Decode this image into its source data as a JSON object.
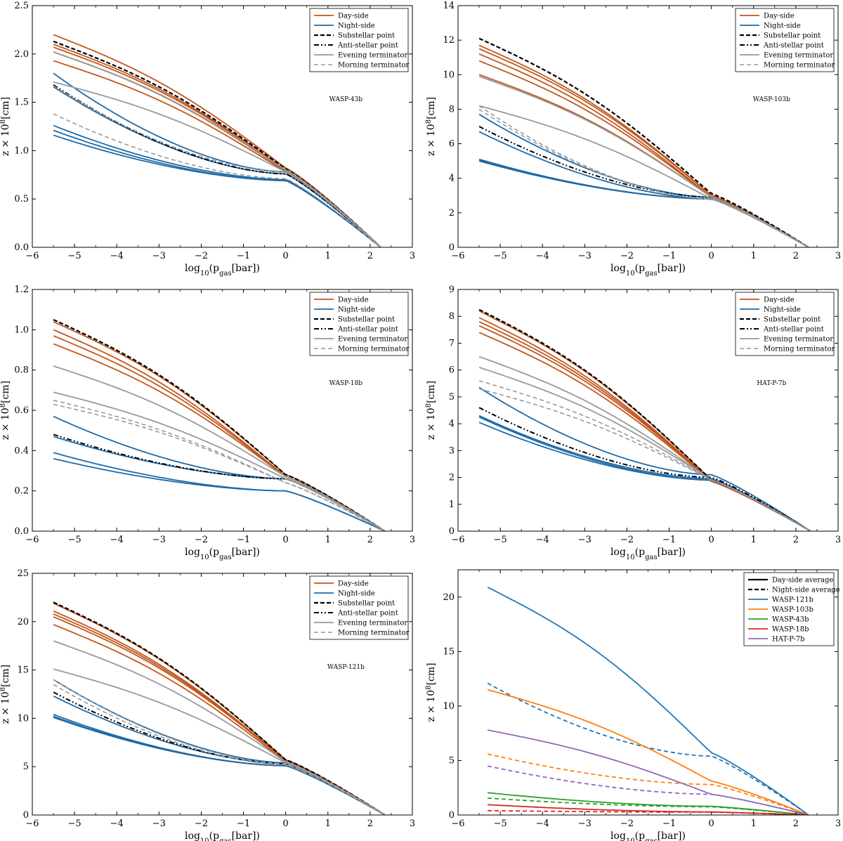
{
  "chart_data": [
    {
      "type": "line",
      "title": "WASP-43b",
      "xlabel": "log10(pgas[bar])",
      "ylabel": "z × 10^8[cm]",
      "xlim": [
        -6,
        3
      ],
      "ylim": [
        0,
        2.5
      ],
      "xticks": [
        -6,
        -5,
        -4,
        -3,
        -2,
        -1,
        0,
        1,
        2,
        3
      ],
      "yticks": [
        0.0,
        0.5,
        1.0,
        1.5,
        2.0,
        2.5
      ],
      "ytick_labels": [
        "0.0",
        "0.5",
        "1.0",
        "1.5",
        "2.0",
        "2.5"
      ],
      "legend": [
        "Day-side",
        "Night-side",
        "Substellar point",
        "Anti-stellar point",
        "Evening terminator",
        "Morning terminator"
      ],
      "x_end": 2.25,
      "series": [
        {
          "name": "Day-side",
          "start": 2.2,
          "mid": 0.82,
          "shape": "day"
        },
        {
          "name": "Day-side",
          "start": 2.1,
          "mid": 0.8,
          "shape": "day"
        },
        {
          "name": "Day-side",
          "start": 2.07,
          "mid": 0.8,
          "shape": "day"
        },
        {
          "name": "Day-side",
          "start": 2.02,
          "mid": 0.79,
          "shape": "day"
        },
        {
          "name": "Day-side",
          "start": 1.93,
          "mid": 0.78,
          "shape": "day"
        },
        {
          "name": "Night-side",
          "start": 1.8,
          "mid": 0.78,
          "shape": "night"
        },
        {
          "name": "Night-side",
          "start": 1.66,
          "mid": 0.76,
          "shape": "night"
        },
        {
          "name": "Night-side",
          "start": 1.26,
          "mid": 0.7,
          "shape": "night"
        },
        {
          "name": "Night-side",
          "start": 1.21,
          "mid": 0.69,
          "shape": "night"
        },
        {
          "name": "Night-side",
          "start": 1.16,
          "mid": 0.69,
          "shape": "night"
        },
        {
          "name": "Substellar point",
          "start": 2.13,
          "mid": 0.81,
          "shape": "day"
        },
        {
          "name": "Anti-stellar point",
          "start": 1.68,
          "mid": 0.76,
          "shape": "night"
        },
        {
          "name": "Evening terminator",
          "start": 2.02,
          "mid": 0.8,
          "shape": "day"
        },
        {
          "name": "Evening terminator",
          "start": 1.71,
          "mid": 0.78,
          "shape": "day"
        },
        {
          "name": "Morning terminator",
          "start": 1.67,
          "mid": 0.78,
          "shape": "night"
        },
        {
          "name": "Morning terminator",
          "start": 1.38,
          "mid": 0.71,
          "shape": "night"
        }
      ]
    },
    {
      "type": "line",
      "title": "WASP-103b",
      "xlabel": "log10(pgas[bar])",
      "ylabel": "z × 10^8[cm]",
      "xlim": [
        -6,
        3
      ],
      "ylim": [
        0,
        14
      ],
      "xticks": [
        -6,
        -5,
        -4,
        -3,
        -2,
        -1,
        0,
        1,
        2,
        3
      ],
      "yticks": [
        0,
        2,
        4,
        6,
        8,
        10,
        12,
        14
      ],
      "ytick_labels": [
        "0",
        "2",
        "4",
        "6",
        "8",
        "10",
        "12",
        "14"
      ],
      "legend": [
        "Day-side",
        "Night-side",
        "Substellar point",
        "Anti-stellar point",
        "Evening terminator",
        "Morning terminator"
      ],
      "x_end": 2.3,
      "series": [
        {
          "name": "Day-side",
          "start": 11.7,
          "mid": 3.0,
          "shape": "day"
        },
        {
          "name": "Day-side",
          "start": 11.5,
          "mid": 3.0,
          "shape": "day"
        },
        {
          "name": "Day-side",
          "start": 11.2,
          "mid": 2.9,
          "shape": "day"
        },
        {
          "name": "Day-side",
          "start": 10.8,
          "mid": 2.9,
          "shape": "day"
        },
        {
          "name": "Day-side",
          "start": 10.0,
          "mid": 2.9,
          "shape": "day"
        },
        {
          "name": "Night-side",
          "start": 7.7,
          "mid": 2.9,
          "shape": "night"
        },
        {
          "name": "Night-side",
          "start": 6.7,
          "mid": 2.8,
          "shape": "night"
        },
        {
          "name": "Night-side",
          "start": 5.1,
          "mid": 2.8,
          "shape": "night"
        },
        {
          "name": "Night-side",
          "start": 5.05,
          "mid": 2.8,
          "shape": "night"
        },
        {
          "name": "Night-side",
          "start": 5.0,
          "mid": 2.8,
          "shape": "night"
        },
        {
          "name": "Substellar point",
          "start": 12.1,
          "mid": 3.1,
          "shape": "day"
        },
        {
          "name": "Anti-stellar point",
          "start": 7.0,
          "mid": 2.9,
          "shape": "night"
        },
        {
          "name": "Evening terminator",
          "start": 9.9,
          "mid": 2.9,
          "shape": "day"
        },
        {
          "name": "Evening terminator",
          "start": 8.2,
          "mid": 2.8,
          "shape": "day"
        },
        {
          "name": "Morning terminator",
          "start": 8.2,
          "mid": 2.8,
          "shape": "night"
        },
        {
          "name": "Morning terminator",
          "start": 8.0,
          "mid": 2.8,
          "shape": "night"
        }
      ]
    },
    {
      "type": "line",
      "title": "WASP-18b",
      "xlabel": "log10(pgas[bar])",
      "ylabel": "z × 10^8[cm]",
      "xlim": [
        -6,
        3
      ],
      "ylim": [
        0,
        1.2
      ],
      "xticks": [
        -6,
        -5,
        -4,
        -3,
        -2,
        -1,
        0,
        1,
        2,
        3
      ],
      "yticks": [
        0.0,
        0.2,
        0.4,
        0.6,
        0.8,
        1.0,
        1.2
      ],
      "ytick_labels": [
        "0.0",
        "0.2",
        "0.4",
        "0.6",
        "0.8",
        "1.0",
        "1.2"
      ],
      "legend": [
        "Day-side",
        "Night-side",
        "Substellar point",
        "Anti-stellar point",
        "Evening terminator",
        "Morning terminator"
      ],
      "x_end": 2.35,
      "series": [
        {
          "name": "Day-side",
          "start": 1.04,
          "mid": 0.28,
          "shape": "day"
        },
        {
          "name": "Day-side",
          "start": 1.0,
          "mid": 0.27,
          "shape": "day"
        },
        {
          "name": "Day-side",
          "start": 0.97,
          "mid": 0.27,
          "shape": "day"
        },
        {
          "name": "Day-side",
          "start": 0.93,
          "mid": 0.27,
          "shape": "day"
        },
        {
          "name": "Night-side",
          "start": 0.57,
          "mid": 0.26,
          "shape": "night"
        },
        {
          "name": "Night-side",
          "start": 0.47,
          "mid": 0.26,
          "shape": "night"
        },
        {
          "name": "Night-side",
          "start": 0.39,
          "mid": 0.2,
          "shape": "night"
        },
        {
          "name": "Night-side",
          "start": 0.36,
          "mid": 0.2,
          "shape": "night"
        },
        {
          "name": "Substellar point",
          "start": 1.05,
          "mid": 0.28,
          "shape": "day"
        },
        {
          "name": "Anti-stellar point",
          "start": 0.48,
          "mid": 0.26,
          "shape": "night"
        },
        {
          "name": "Evening terminator",
          "start": 0.82,
          "mid": 0.27,
          "shape": "day"
        },
        {
          "name": "Evening terminator",
          "start": 0.69,
          "mid": 0.26,
          "shape": "day"
        },
        {
          "name": "Morning terminator",
          "start": 0.65,
          "mid": 0.24,
          "shape": "day"
        },
        {
          "name": "Morning terminator",
          "start": 0.63,
          "mid": 0.24,
          "shape": "day"
        }
      ]
    },
    {
      "type": "line",
      "title": "HAT-P-7b",
      "xlabel": "log10(pgas[bar])",
      "ylabel": "z × 10^8[cm]",
      "xlim": [
        -6,
        3
      ],
      "ylim": [
        0,
        9
      ],
      "xticks": [
        -6,
        -5,
        -4,
        -3,
        -2,
        -1,
        0,
        1,
        2,
        3
      ],
      "yticks": [
        0,
        1,
        2,
        3,
        4,
        5,
        6,
        7,
        8,
        9
      ],
      "ytick_labels": [
        "0",
        "1",
        "2",
        "3",
        "4",
        "5",
        "6",
        "7",
        "8",
        "9"
      ],
      "legend": [
        "Day-side",
        "Night-side",
        "Substellar point",
        "Anti-stellar point",
        "Evening terminator",
        "Morning terminator"
      ],
      "x_end": 2.35,
      "series": [
        {
          "name": "Day-side",
          "start": 8.2,
          "mid": 1.9,
          "shape": "day"
        },
        {
          "name": "Day-side",
          "start": 7.95,
          "mid": 1.85,
          "shape": "day"
        },
        {
          "name": "Day-side",
          "start": 7.8,
          "mid": 1.85,
          "shape": "day"
        },
        {
          "name": "Day-side",
          "start": 7.65,
          "mid": 1.85,
          "shape": "day"
        },
        {
          "name": "Day-side",
          "start": 7.4,
          "mid": 1.85,
          "shape": "day"
        },
        {
          "name": "Night-side",
          "start": 5.35,
          "mid": 2.1,
          "shape": "night"
        },
        {
          "name": "Night-side",
          "start": 4.3,
          "mid": 1.95,
          "shape": "night"
        },
        {
          "name": "Night-side",
          "start": 4.25,
          "mid": 1.9,
          "shape": "night"
        },
        {
          "name": "Night-side",
          "start": 4.05,
          "mid": 1.9,
          "shape": "night"
        },
        {
          "name": "Substellar point",
          "start": 8.25,
          "mid": 1.9,
          "shape": "day"
        },
        {
          "name": "Anti-stellar point",
          "start": 4.6,
          "mid": 2.0,
          "shape": "night"
        },
        {
          "name": "Evening terminator",
          "start": 6.5,
          "mid": 1.9,
          "shape": "day"
        },
        {
          "name": "Evening terminator",
          "start": 6.1,
          "mid": 1.9,
          "shape": "day"
        },
        {
          "name": "Morning terminator",
          "start": 5.6,
          "mid": 1.9,
          "shape": "day"
        },
        {
          "name": "Morning terminator",
          "start": 5.3,
          "mid": 1.9,
          "shape": "day"
        }
      ]
    },
    {
      "type": "line",
      "title": "WASP-121b",
      "xlabel": "log10(pgas[bar])",
      "ylabel": "z × 10^8[cm]",
      "xlim": [
        -6,
        3
      ],
      "ylim": [
        0,
        25
      ],
      "xticks": [
        -6,
        -5,
        -4,
        -3,
        -2,
        -1,
        0,
        1,
        2,
        3
      ],
      "yticks": [
        0,
        5,
        10,
        15,
        20,
        25
      ],
      "ytick_labels": [
        "0",
        "5",
        "10",
        "15",
        "20",
        "25"
      ],
      "legend": [
        "Day-side",
        "Night-side",
        "Substellar point",
        "Anti-stellar point",
        "Evening terminator",
        "Morning terminator"
      ],
      "x_end": 2.35,
      "series": [
        {
          "name": "Day-side",
          "start": 21.9,
          "mid": 5.7,
          "shape": "day"
        },
        {
          "name": "Day-side",
          "start": 21.1,
          "mid": 5.6,
          "shape": "day"
        },
        {
          "name": "Day-side",
          "start": 20.8,
          "mid": 5.6,
          "shape": "day"
        },
        {
          "name": "Day-side",
          "start": 20.5,
          "mid": 5.6,
          "shape": "day"
        },
        {
          "name": "Day-side",
          "start": 19.7,
          "mid": 5.5,
          "shape": "day"
        },
        {
          "name": "Night-side",
          "start": 14.0,
          "mid": 5.4,
          "shape": "night"
        },
        {
          "name": "Night-side",
          "start": 12.3,
          "mid": 5.3,
          "shape": "night"
        },
        {
          "name": "Night-side",
          "start": 10.4,
          "mid": 5.1,
          "shape": "night"
        },
        {
          "name": "Night-side",
          "start": 10.2,
          "mid": 5.1,
          "shape": "night"
        },
        {
          "name": "Night-side",
          "start": 10.1,
          "mid": 5.1,
          "shape": "night"
        },
        {
          "name": "Substellar point",
          "start": 22.0,
          "mid": 5.7,
          "shape": "day"
        },
        {
          "name": "Anti-stellar point",
          "start": 12.7,
          "mid": 5.3,
          "shape": "night"
        },
        {
          "name": "Evening terminator",
          "start": 18.0,
          "mid": 5.5,
          "shape": "day"
        },
        {
          "name": "Evening terminator",
          "start": 15.1,
          "mid": 5.4,
          "shape": "day"
        },
        {
          "name": "Morning terminator",
          "start": 14.0,
          "mid": 5.3,
          "shape": "night"
        },
        {
          "name": "Morning terminator",
          "start": 13.5,
          "mid": 5.2,
          "shape": "night"
        }
      ]
    },
    {
      "type": "line",
      "title": "",
      "xlabel": "log10(pgas[bar])",
      "ylabel": "z × 10^8[cm]",
      "xlim": [
        -6,
        3
      ],
      "ylim": [
        0,
        22.5
      ],
      "xticks": [
        -6,
        -5,
        -4,
        -3,
        -2,
        -1,
        0,
        1,
        2,
        3
      ],
      "yticks": [
        0,
        5,
        10,
        15,
        20
      ],
      "ytick_labels": [
        "0",
        "5",
        "10",
        "15",
        "20"
      ],
      "legend": [
        "Day-side average",
        "Night-side average",
        "WASP-121b",
        "WASP-103b",
        "WASP-43b",
        "WASP-18b",
        "HAT-P-7b"
      ],
      "legend_style": "averages",
      "x_start": -5.3,
      "x_end": 2.3,
      "series": [
        {
          "name": "WASP-121b Day-side average",
          "planet": "WASP-121b",
          "kind": "day",
          "start": 20.9,
          "mid": 5.7,
          "shape": "day"
        },
        {
          "name": "WASP-121b Night-side average",
          "planet": "WASP-121b",
          "kind": "night",
          "start": 12.1,
          "mid": 5.4,
          "shape": "night"
        },
        {
          "name": "WASP-103b Day-side average",
          "planet": "WASP-103b",
          "kind": "day",
          "start": 11.5,
          "mid": 3.1,
          "shape": "day"
        },
        {
          "name": "WASP-103b Night-side average",
          "planet": "WASP-103b",
          "kind": "night",
          "start": 5.6,
          "mid": 2.8,
          "shape": "night"
        },
        {
          "name": "HAT-P-7b Day-side average",
          "planet": "HAT-P-7b",
          "kind": "day",
          "start": 7.8,
          "mid": 1.9,
          "shape": "day"
        },
        {
          "name": "HAT-P-7b Night-side average",
          "planet": "HAT-P-7b",
          "kind": "night",
          "start": 4.5,
          "mid": 1.9,
          "shape": "night"
        },
        {
          "name": "WASP-43b Day-side average",
          "planet": "WASP-43b",
          "kind": "day",
          "start": 2.05,
          "mid": 0.8,
          "shape": "night"
        },
        {
          "name": "WASP-43b Night-side average",
          "planet": "WASP-43b",
          "kind": "night",
          "start": 1.55,
          "mid": 0.75,
          "shape": "night"
        },
        {
          "name": "WASP-18b Day-side average",
          "planet": "WASP-18b",
          "kind": "day",
          "start": 0.95,
          "mid": 0.28,
          "shape": "night"
        },
        {
          "name": "WASP-18b Night-side average",
          "planet": "WASP-18b",
          "kind": "night",
          "start": 0.4,
          "mid": 0.26,
          "shape": "night"
        }
      ]
    }
  ],
  "colors": {
    "Day-side": "#c1561c",
    "Night-side": "#1f6aa5",
    "Substellar point": "#000000",
    "Anti-stellar point": "#000000",
    "Evening terminator": "#999999",
    "Morning terminator": "#999999",
    "WASP-121b": "#1f77b4",
    "WASP-103b": "#ff7f0e",
    "WASP-43b": "#2ca02c",
    "WASP-18b": "#d62728",
    "HAT-P-7b": "#9467bd"
  }
}
